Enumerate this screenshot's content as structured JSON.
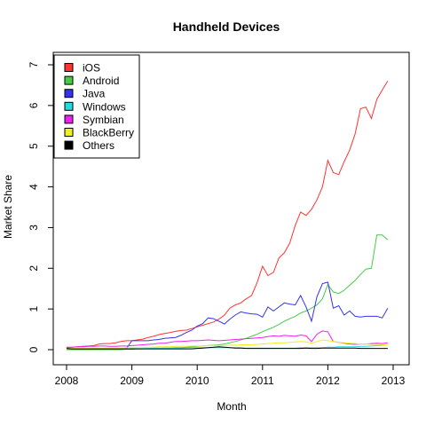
{
  "chart_data": {
    "type": "line",
    "title": "Handheld Devices",
    "xlabel": "Month",
    "ylabel": "Market Share",
    "xlim": [
      2008,
      2013
    ],
    "ylim": [
      0,
      7
    ],
    "x_ticks": [
      "2008",
      "2009",
      "2010",
      "2011",
      "2012",
      "2013"
    ],
    "y_ticks": [
      "0",
      "1",
      "2",
      "3",
      "4",
      "5",
      "6",
      "7"
    ],
    "legend_position": "top-left",
    "grid": false,
    "x": [
      2008.0,
      2008.083,
      2008.167,
      2008.25,
      2008.333,
      2008.417,
      2008.5,
      2008.583,
      2008.667,
      2008.75,
      2008.833,
      2008.917,
      2009.0,
      2009.083,
      2009.167,
      2009.25,
      2009.333,
      2009.417,
      2009.5,
      2009.583,
      2009.667,
      2009.75,
      2009.833,
      2009.917,
      2010.0,
      2010.083,
      2010.167,
      2010.25,
      2010.333,
      2010.417,
      2010.5,
      2010.583,
      2010.667,
      2010.75,
      2010.833,
      2010.917,
      2011.0,
      2011.083,
      2011.167,
      2011.25,
      2011.333,
      2011.417,
      2011.5,
      2011.583,
      2011.667,
      2011.75,
      2011.833,
      2011.917,
      2012.0,
      2012.083,
      2012.167,
      2012.25,
      2012.333,
      2012.417,
      2012.5,
      2012.583,
      2012.667,
      2012.75,
      2012.833,
      2012.917
    ],
    "series": [
      {
        "name": "iOS",
        "color": "#ff3333",
        "values": [
          0.05,
          0.06,
          0.07,
          0.08,
          0.09,
          0.1,
          0.14,
          0.15,
          0.15,
          0.17,
          0.2,
          0.22,
          0.22,
          0.24,
          0.26,
          0.3,
          0.33,
          0.37,
          0.4,
          0.42,
          0.45,
          0.47,
          0.48,
          0.52,
          0.56,
          0.6,
          0.64,
          0.68,
          0.75,
          0.85,
          1.02,
          1.1,
          1.15,
          1.25,
          1.33,
          1.65,
          2.05,
          1.82,
          1.9,
          2.25,
          2.38,
          2.62,
          3.05,
          3.38,
          3.3,
          3.45,
          3.68,
          4.0,
          4.65,
          4.35,
          4.3,
          4.62,
          4.9,
          5.3,
          5.92,
          5.96,
          5.68,
          6.15,
          6.38,
          6.6
        ]
      },
      {
        "name": "Android",
        "color": "#44cc44",
        "values": [
          0.0,
          0.0,
          0.0,
          0.0,
          0.0,
          0.0,
          0.0,
          0.0,
          0.0,
          0.0,
          0.0,
          0.01,
          0.01,
          0.02,
          0.02,
          0.03,
          0.03,
          0.03,
          0.04,
          0.04,
          0.05,
          0.05,
          0.06,
          0.07,
          0.08,
          0.09,
          0.1,
          0.11,
          0.12,
          0.14,
          0.17,
          0.2,
          0.24,
          0.28,
          0.33,
          0.38,
          0.44,
          0.5,
          0.55,
          0.62,
          0.7,
          0.76,
          0.82,
          0.9,
          0.95,
          1.02,
          1.1,
          1.25,
          1.6,
          1.42,
          1.38,
          1.46,
          1.58,
          1.7,
          1.85,
          1.98,
          2.0,
          2.82,
          2.82,
          2.7
        ]
      },
      {
        "name": "Java",
        "color": "#3333ee",
        "values": [
          0.02,
          0.02,
          0.02,
          0.02,
          0.02,
          0.02,
          0.02,
          0.02,
          0.02,
          0.02,
          0.02,
          0.03,
          0.22,
          0.22,
          0.22,
          0.22,
          0.24,
          0.25,
          0.28,
          0.29,
          0.3,
          0.35,
          0.42,
          0.48,
          0.58,
          0.64,
          0.78,
          0.76,
          0.7,
          0.63,
          0.75,
          0.85,
          0.93,
          0.9,
          0.88,
          0.87,
          0.8,
          1.05,
          0.95,
          1.05,
          1.15,
          1.12,
          1.1,
          1.33,
          1.05,
          0.7,
          1.3,
          1.62,
          1.66,
          1.02,
          1.08,
          0.85,
          0.95,
          0.82,
          0.8,
          0.82,
          0.82,
          0.82,
          0.78,
          1.02
        ]
      },
      {
        "name": "Windows",
        "color": "#22dddd",
        "values": [
          0.02,
          0.02,
          0.02,
          0.02,
          0.02,
          0.02,
          0.02,
          0.02,
          0.02,
          0.02,
          0.02,
          0.02,
          0.03,
          0.03,
          0.03,
          0.03,
          0.04,
          0.04,
          0.04,
          0.04,
          0.04,
          0.04,
          0.05,
          0.05,
          0.05,
          0.05,
          0.05,
          0.05,
          0.05,
          0.05,
          0.05,
          0.05,
          0.05,
          0.04,
          0.04,
          0.04,
          0.04,
          0.04,
          0.04,
          0.04,
          0.04,
          0.04,
          0.04,
          0.05,
          0.05,
          0.05,
          0.05,
          0.05,
          0.06,
          0.06,
          0.07,
          0.07,
          0.07,
          0.07,
          0.08,
          0.08,
          0.09,
          0.1,
          0.11,
          0.12
        ]
      },
      {
        "name": "Symbian",
        "color": "#ee22ee",
        "values": [
          0.06,
          0.06,
          0.07,
          0.07,
          0.08,
          0.08,
          0.09,
          0.09,
          0.08,
          0.08,
          0.09,
          0.09,
          0.1,
          0.11,
          0.12,
          0.13,
          0.14,
          0.16,
          0.16,
          0.18,
          0.2,
          0.2,
          0.21,
          0.22,
          0.22,
          0.23,
          0.24,
          0.23,
          0.22,
          0.23,
          0.24,
          0.25,
          0.26,
          0.27,
          0.28,
          0.29,
          0.3,
          0.32,
          0.34,
          0.33,
          0.35,
          0.34,
          0.33,
          0.36,
          0.34,
          0.2,
          0.38,
          0.46,
          0.44,
          0.2,
          0.18,
          0.16,
          0.14,
          0.13,
          0.14,
          0.14,
          0.15,
          0.16,
          0.15,
          0.17
        ]
      },
      {
        "name": "BlackBerry",
        "color": "#eeee22",
        "values": [
          0.03,
          0.03,
          0.03,
          0.03,
          0.03,
          0.04,
          0.04,
          0.04,
          0.04,
          0.04,
          0.04,
          0.05,
          0.05,
          0.05,
          0.05,
          0.06,
          0.06,
          0.07,
          0.07,
          0.07,
          0.08,
          0.08,
          0.08,
          0.09,
          0.09,
          0.09,
          0.1,
          0.1,
          0.1,
          0.1,
          0.11,
          0.11,
          0.12,
          0.12,
          0.12,
          0.13,
          0.14,
          0.15,
          0.16,
          0.17,
          0.17,
          0.18,
          0.19,
          0.2,
          0.19,
          0.16,
          0.2,
          0.24,
          0.22,
          0.2,
          0.18,
          0.17,
          0.16,
          0.15,
          0.14,
          0.14,
          0.13,
          0.13,
          0.12,
          0.12
        ]
      },
      {
        "name": "Others",
        "color": "#000000",
        "values": [
          0.03,
          0.02,
          0.02,
          0.02,
          0.02,
          0.02,
          0.02,
          0.02,
          0.02,
          0.02,
          0.02,
          0.02,
          0.02,
          0.02,
          0.02,
          0.02,
          0.02,
          0.02,
          0.02,
          0.02,
          0.02,
          0.02,
          0.02,
          0.02,
          0.03,
          0.04,
          0.05,
          0.06,
          0.07,
          0.06,
          0.05,
          0.04,
          0.04,
          0.03,
          0.03,
          0.03,
          0.03,
          0.03,
          0.03,
          0.03,
          0.03,
          0.03,
          0.03,
          0.03,
          0.04,
          0.03,
          0.03,
          0.04,
          0.04,
          0.04,
          0.04,
          0.04,
          0.04,
          0.04,
          0.03,
          0.03,
          0.03,
          0.03,
          0.03,
          0.03
        ]
      }
    ]
  }
}
